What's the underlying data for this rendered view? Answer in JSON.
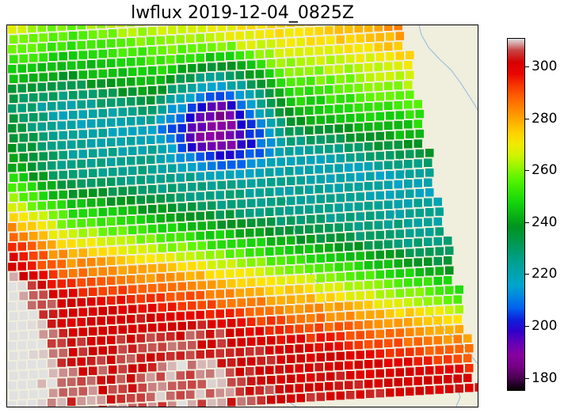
{
  "title": "lwflux 2019-12-04_0825Z",
  "colorbar": {
    "ticks": [
      "180",
      "200",
      "220",
      "240",
      "260",
      "280",
      "300"
    ],
    "range": [
      175,
      311
    ],
    "colormap": "NCL rainbow+white+gray"
  },
  "colors": {
    "land": "#f0eedd",
    "coastline": "#8fb8dc"
  }
}
